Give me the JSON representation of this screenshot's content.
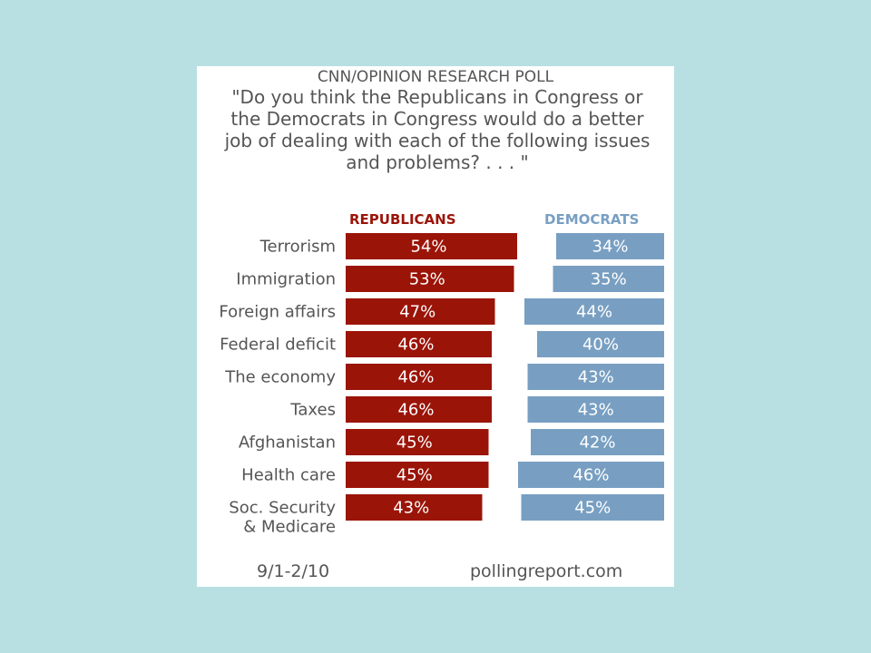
{
  "header": {
    "source": "CNN/OPINION RESEARCH POLL",
    "question": "\"Do you think the Republicans in Congress or the Democrats in Congress would do a better job of dealing with each of the following issues and problems? . . . \""
  },
  "footer": {
    "date": "9/1-2/10",
    "site": "pollingreport.com"
  },
  "colors": {
    "republicans": "#9b1408",
    "democrats": "#789fc2",
    "background": "#b8e0e2"
  },
  "chart_data": {
    "type": "bar",
    "categories": [
      "Terrorism",
      "Immigration",
      "Foreign affairs",
      "Federal deficit",
      "The economy",
      "Taxes",
      "Afghanistan",
      "Health care",
      "Soc. Security & Medicare"
    ],
    "series": [
      {
        "name": "REPUBLICANS",
        "values": [
          54,
          53,
          47,
          46,
          46,
          46,
          45,
          45,
          43
        ],
        "labels": [
          "54%",
          "53%",
          "47%",
          "46%",
          "46%",
          "46%",
          "45%",
          "45%",
          "43%"
        ]
      },
      {
        "name": "DEMOCRATS",
        "values": [
          34,
          35,
          44,
          40,
          43,
          43,
          42,
          46,
          45
        ],
        "labels": [
          "34%",
          "35%",
          "44%",
          "40%",
          "43%",
          "43%",
          "42%",
          "46%",
          "45%"
        ]
      }
    ],
    "unit": "%",
    "ylim": [
      0,
      100
    ]
  }
}
